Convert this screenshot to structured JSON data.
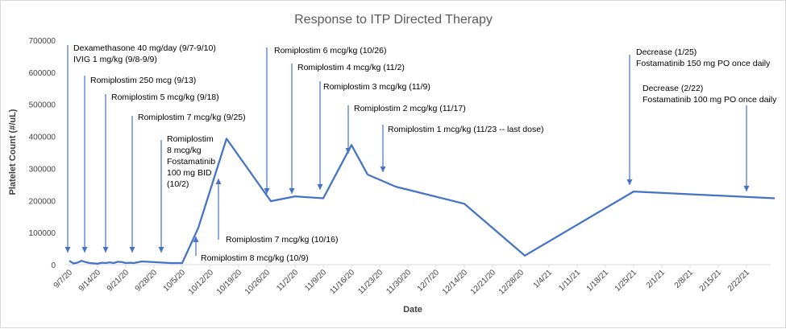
{
  "colors": {
    "line": "#4472C4",
    "arrow": "#4472C4",
    "axis": "#d9d9d9"
  },
  "chart_data": {
    "type": "line",
    "title": "Response to ITP Directed Therapy",
    "xlabel": "Date",
    "ylabel": "Platelet Count (#/uL)",
    "ylim": [
      0,
      700000
    ],
    "xlim": [
      "2020-09-06",
      "2021-02-28"
    ],
    "grid": false,
    "legend": "none",
    "y_ticks": [
      "0",
      "100000",
      "200000",
      "300000",
      "400000",
      "500000",
      "600000",
      "700000"
    ],
    "x_ticks": [
      "9/7/20",
      "9/14/20",
      "9/21/20",
      "9/28/20",
      "10/5/20",
      "10/12/20",
      "10/19/20",
      "10/26/20",
      "11/2/20",
      "11/9/20",
      "11/16/20",
      "11/23/20",
      "11/30/20",
      "12/7/20",
      "12/14/20",
      "12/21/20",
      "12/28/20",
      "1/4/21",
      "1/11/21",
      "1/18/21",
      "1/25/21",
      "2/1/21",
      "2/8/21",
      "2/15/21",
      "2/22/21"
    ],
    "x_tick_dates": [
      "2020-09-07",
      "2020-09-14",
      "2020-09-21",
      "2020-09-28",
      "2020-10-05",
      "2020-10-12",
      "2020-10-19",
      "2020-10-26",
      "2020-11-02",
      "2020-11-09",
      "2020-11-16",
      "2020-11-23",
      "2020-11-30",
      "2020-12-07",
      "2020-12-14",
      "2020-12-21",
      "2020-12-28",
      "2021-01-04",
      "2021-01-11",
      "2021-01-18",
      "2021-01-25",
      "2021-02-01",
      "2021-02-08",
      "2021-02-15",
      "2021-02-22"
    ],
    "series": [
      {
        "x": [
          "2020-09-07",
          "2020-09-08",
          "2020-09-09",
          "2020-09-10",
          "2020-09-11",
          "2020-09-12",
          "2020-09-13",
          "2020-09-14",
          "2020-09-15",
          "2020-09-16",
          "2020-09-17",
          "2020-09-18",
          "2020-09-19",
          "2020-09-20",
          "2020-09-21",
          "2020-09-22",
          "2020-09-23",
          "2020-09-25",
          "2020-10-02",
          "2020-10-05",
          "2020-10-09",
          "2020-10-16",
          "2020-10-27",
          "2020-11-02",
          "2020-11-09",
          "2020-11-16",
          "2020-11-20",
          "2020-11-27",
          "2020-12-14",
          "2020-12-29",
          "2021-01-25",
          "2021-03-01"
        ],
        "y": [
          12000,
          4000,
          6000,
          12000,
          8000,
          5000,
          4000,
          3000,
          6000,
          5000,
          7000,
          5000,
          9000,
          8000,
          5000,
          6000,
          5000,
          10000,
          5000,
          5000,
          115000,
          393000,
          198000,
          213000,
          207000,
          373000,
          281000,
          243000,
          190000,
          28000,
          228000,
          207000
        ]
      }
    ],
    "annotations": [
      {
        "lines": [
          "Dexamethasone 40 mg/day (9/7-9/10)",
          "IVIG 1 mg/kg (9/8-9/9)"
        ],
        "date": "2020-09-07"
      },
      {
        "lines": [
          "Romiplostim 250 mcg (9/13)"
        ],
        "date": "2020-09-13"
      },
      {
        "lines": [
          "Romiplostim 5 mcg/kg (9/18)"
        ],
        "date": "2020-09-18"
      },
      {
        "lines": [
          "Romiplostim 7 mcg/kg (9/25)"
        ],
        "date": "2020-09-25"
      },
      {
        "lines": [
          "Romiplostim",
          "8 mcg/kg",
          "Fostamatinib",
          "100 mg BID",
          "(10/2)"
        ],
        "date": "2020-10-02"
      },
      {
        "lines": [
          "Romiplostim 8 mcg/kg (10/9)"
        ],
        "date": "2020-10-09"
      },
      {
        "lines": [
          "Romiplostim 7 mcg/kg (10/16)"
        ],
        "date": "2020-10-16"
      },
      {
        "lines": [
          "Romiplostim 6 mcg/kg (10/26)"
        ],
        "date": "2020-10-26"
      },
      {
        "lines": [
          "Romiplostim 4 mcg/kg (11/2)"
        ],
        "date": "2020-11-02"
      },
      {
        "lines": [
          "Romiplostim 3 mcg/kg (11/9)"
        ],
        "date": "2020-11-09"
      },
      {
        "lines": [
          "Romiplostim 2 mcg/kg (11/17)"
        ],
        "date": "2020-11-17"
      },
      {
        "lines": [
          "Romiplostim 1 mcg/kg (11/23 -- last dose)"
        ],
        "date": "2020-11-23"
      },
      {
        "lines": [
          "Decrease (1/25)",
          "Fostamatinib 150 mg PO once daily"
        ],
        "date": "2021-01-25"
      },
      {
        "lines": [
          "Decrease (2/22)",
          "Fostamatinib 100 mg PO once daily"
        ],
        "date": "2021-02-22"
      }
    ]
  }
}
